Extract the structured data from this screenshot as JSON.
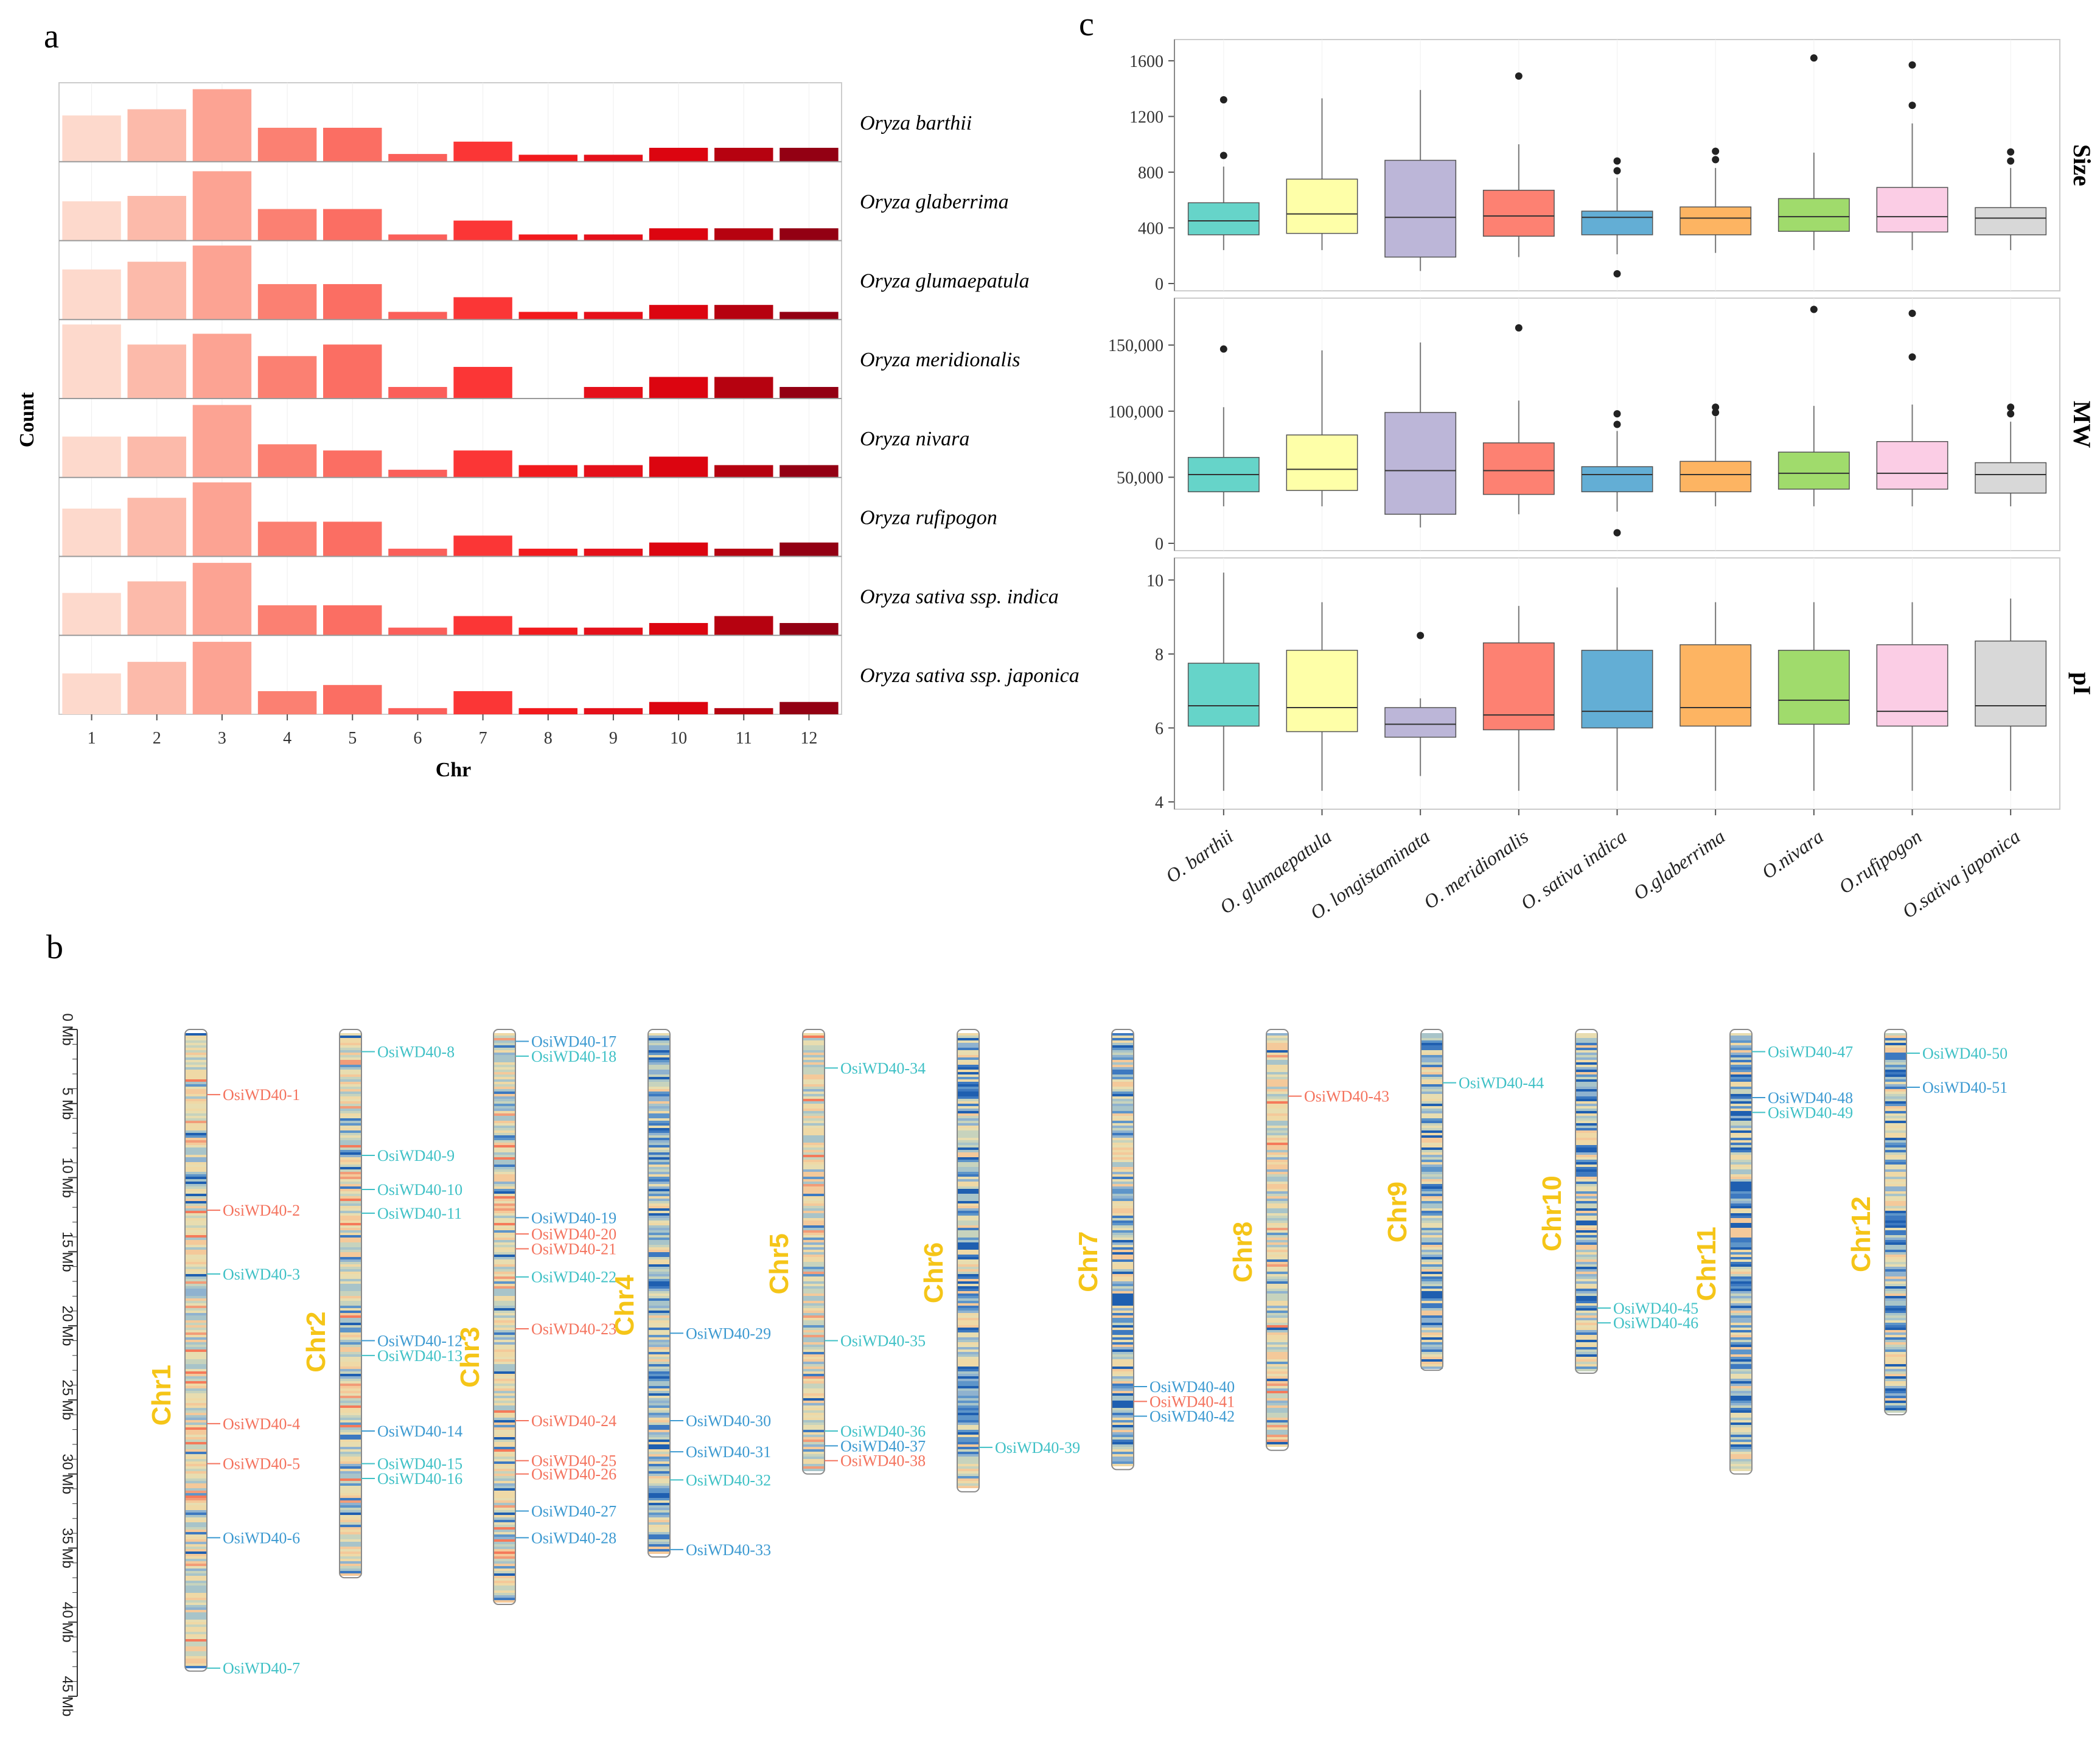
{
  "panels": {
    "a": "a",
    "b": "b",
    "c": "c"
  },
  "colors": {
    "chr": [
      "#fdd9cc",
      "#fcbaaa",
      "#fca393",
      "#fb8072",
      "#fb6e63",
      "#fb5f5a",
      "#fb3636",
      "#f21a1d",
      "#e5101a",
      "#dc0510",
      "#b60210",
      "#930013"
    ],
    "box": [
      "#66d4c9",
      "#feffa8",
      "#bcb6d8",
      "#fd8172",
      "#63aed5",
      "#fdb462",
      "#a0db6c",
      "#fbcde5",
      "#d8d8d8"
    ],
    "gene_red": "#f4735e",
    "gene_teal": "#40c1c6",
    "gene_blue": "#3d9ad1",
    "chr_label": "#f5c518"
  },
  "chart_data": [
    {
      "id": "a",
      "type": "bar",
      "facet": "rows",
      "xlabel": "Chr",
      "ylabel": "Count",
      "categories": [
        "1",
        "2",
        "3",
        "4",
        "5",
        "6",
        "7",
        "8",
        "9",
        "10",
        "11",
        "12"
      ],
      "ylim": [
        0,
        10
      ],
      "series": [
        {
          "name": "Oryza barthii",
          "values": [
            6.0,
            6.8,
            9.4,
            4.4,
            4.4,
            1.0,
            2.6,
            0.9,
            0.9,
            1.8,
            1.8,
            1.8
          ]
        },
        {
          "name": "Oryza glaberrima",
          "values": [
            5.1,
            5.8,
            9.0,
            4.1,
            4.1,
            0.8,
            2.6,
            0.8,
            0.8,
            1.6,
            1.6,
            1.6
          ]
        },
        {
          "name": "Oryza glumaepatula",
          "values": [
            6.5,
            7.5,
            9.6,
            4.6,
            4.6,
            1.0,
            2.9,
            1.0,
            1.0,
            1.9,
            1.9,
            1.0
          ]
        },
        {
          "name": "Oryza meridionalis",
          "values": [
            9.6,
            7.0,
            8.4,
            5.5,
            7.0,
            1.5,
            4.1,
            0.0,
            1.5,
            2.8,
            2.8,
            1.5
          ]
        },
        {
          "name": "Oryza nivara",
          "values": [
            5.3,
            5.3,
            9.4,
            4.3,
            3.5,
            1.0,
            3.5,
            1.6,
            1.6,
            2.7,
            1.6,
            1.6
          ]
        },
        {
          "name": "Oryza rufipogon",
          "values": [
            6.2,
            7.6,
            9.6,
            4.5,
            4.5,
            1.0,
            2.7,
            1.0,
            1.0,
            1.8,
            1.0,
            1.8
          ]
        },
        {
          "name": "Oryza sativa ssp. indica",
          "values": [
            5.5,
            7.0,
            9.4,
            3.9,
            3.9,
            1.0,
            2.5,
            1.0,
            1.0,
            1.6,
            2.5,
            1.6
          ]
        },
        {
          "name": "Oryza sativa ssp. japonica",
          "values": [
            5.3,
            6.8,
            9.4,
            3.0,
            3.8,
            0.8,
            3.0,
            0.8,
            0.8,
            1.6,
            0.8,
            1.6
          ]
        }
      ]
    },
    {
      "id": "c",
      "type": "boxplot",
      "facet": "rows",
      "categories": [
        "O. barthii",
        "O. glumaepatula",
        "O. longistaminata",
        "O. meridionalis",
        "O. sativa indica",
        "O.glaberrima",
        "O.nivara",
        "O.rufipogon",
        "O.sativa japonica"
      ],
      "facets": [
        {
          "name": "Size",
          "ylim": [
            0,
            1700
          ],
          "yticks": [
            0,
            400,
            800,
            1200,
            1600
          ],
          "tick_labels": [
            "0",
            "400",
            "800",
            "1200",
            "1600"
          ],
          "boxes": [
            {
              "wlo": 240,
              "q1": 350,
              "med": 450,
              "q3": 580,
              "whi": 840,
              "out": [
                920,
                1320
              ]
            },
            {
              "wlo": 240,
              "q1": 360,
              "med": 500,
              "q3": 750,
              "whi": 1330,
              "out": []
            },
            {
              "wlo": 90,
              "q1": 190,
              "med": 475,
              "q3": 885,
              "whi": 1390,
              "out": []
            },
            {
              "wlo": 190,
              "q1": 340,
              "med": 485,
              "q3": 670,
              "whi": 1000,
              "out": [
                1490
              ]
            },
            {
              "wlo": 210,
              "q1": 350,
              "med": 475,
              "q3": 520,
              "whi": 760,
              "out": [
                70,
                810,
                880
              ]
            },
            {
              "wlo": 220,
              "q1": 350,
              "med": 470,
              "q3": 550,
              "whi": 830,
              "out": [
                890,
                950
              ]
            },
            {
              "wlo": 240,
              "q1": 375,
              "med": 480,
              "q3": 610,
              "whi": 940,
              "out": [
                1620
              ]
            },
            {
              "wlo": 240,
              "q1": 370,
              "med": 480,
              "q3": 690,
              "whi": 1150,
              "out": [
                1280,
                1570
              ]
            },
            {
              "wlo": 240,
              "q1": 350,
              "med": 470,
              "q3": 545,
              "whi": 830,
              "out": [
                880,
                945
              ]
            }
          ]
        },
        {
          "name": "MW",
          "ylim": [
            0,
            180000
          ],
          "yticks": [
            0,
            50000,
            100000,
            150000
          ],
          "tick_labels": [
            "0",
            "50,000",
            "100,000",
            "150,000"
          ],
          "boxes": [
            {
              "wlo": 28000,
              "q1": 39000,
              "med": 52000,
              "q3": 65000,
              "whi": 103000,
              "out": [
                147000
              ]
            },
            {
              "wlo": 28000,
              "q1": 40000,
              "med": 56000,
              "q3": 82000,
              "whi": 146000,
              "out": []
            },
            {
              "wlo": 12000,
              "q1": 22000,
              "med": 55000,
              "q3": 99000,
              "whi": 152000,
              "out": []
            },
            {
              "wlo": 22000,
              "q1": 37000,
              "med": 55000,
              "q3": 76000,
              "whi": 108000,
              "out": [
                163000
              ]
            },
            {
              "wlo": 24000,
              "q1": 39000,
              "med": 52000,
              "q3": 58000,
              "whi": 85000,
              "out": [
                8000,
                90000,
                98000
              ]
            },
            {
              "wlo": 28000,
              "q1": 39000,
              "med": 52000,
              "q3": 62000,
              "whi": 96000,
              "out": [
                99000,
                103000
              ]
            },
            {
              "wlo": 28000,
              "q1": 41000,
              "med": 53000,
              "q3": 69000,
              "whi": 104000,
              "out": [
                177000
              ]
            },
            {
              "wlo": 28000,
              "q1": 41000,
              "med": 53000,
              "q3": 77000,
              "whi": 105000,
              "out": [
                141000,
                174000
              ]
            },
            {
              "wlo": 28000,
              "q1": 38000,
              "med": 52000,
              "q3": 61000,
              "whi": 92000,
              "out": [
                98000,
                103000
              ]
            }
          ]
        },
        {
          "name": "pI",
          "ylim": [
            4,
            10.4
          ],
          "yticks": [
            4,
            6,
            8,
            10
          ],
          "tick_labels": [
            "4",
            "6",
            "8",
            "10"
          ],
          "boxes": [
            {
              "wlo": 4.3,
              "q1": 6.05,
              "med": 6.6,
              "q3": 7.75,
              "whi": 10.2,
              "out": []
            },
            {
              "wlo": 4.3,
              "q1": 5.9,
              "med": 6.55,
              "q3": 8.1,
              "whi": 9.4,
              "out": []
            },
            {
              "wlo": 4.7,
              "q1": 5.75,
              "med": 6.1,
              "q3": 6.55,
              "whi": 6.8,
              "out": [
                8.5
              ]
            },
            {
              "wlo": 4.3,
              "q1": 5.95,
              "med": 6.35,
              "q3": 8.3,
              "whi": 9.3,
              "out": []
            },
            {
              "wlo": 4.3,
              "q1": 6.0,
              "med": 6.45,
              "q3": 8.1,
              "whi": 9.8,
              "out": []
            },
            {
              "wlo": 4.3,
              "q1": 6.05,
              "med": 6.55,
              "q3": 8.25,
              "whi": 9.4,
              "out": []
            },
            {
              "wlo": 4.3,
              "q1": 6.1,
              "med": 6.75,
              "q3": 8.1,
              "whi": 9.4,
              "out": []
            },
            {
              "wlo": 4.3,
              "q1": 6.05,
              "med": 6.45,
              "q3": 8.25,
              "whi": 9.4,
              "out": []
            },
            {
              "wlo": 4.3,
              "q1": 6.05,
              "med": 6.6,
              "q3": 8.35,
              "whi": 9.5,
              "out": []
            }
          ]
        }
      ]
    },
    {
      "id": "b",
      "type": "chromosome_map",
      "scale": {
        "max": 45,
        "ticks": [
          "0 Mb",
          "5 Mb",
          "10 Mb",
          "15 Mb",
          "20 Mb",
          "25 Mb",
          "30 Mb",
          "35 Mb",
          "40 Mb",
          "45 Mb"
        ]
      },
      "chromosomes": [
        {
          "name": "Chr1",
          "length": 43.3,
          "genes": [
            {
              "label": "OsiWD40-1",
              "pos": 4.4,
              "color": "red"
            },
            {
              "label": "OsiWD40-2",
              "pos": 12.2,
              "color": "red"
            },
            {
              "label": "OsiWD40-3",
              "pos": 16.5,
              "color": "teal"
            },
            {
              "label": "OsiWD40-4",
              "pos": 26.6,
              "color": "red"
            },
            {
              "label": "OsiWD40-5",
              "pos": 29.3,
              "color": "red"
            },
            {
              "label": "OsiWD40-6",
              "pos": 34.3,
              "color": "blue"
            },
            {
              "label": "OsiWD40-7",
              "pos": 43.1,
              "color": "teal"
            }
          ]
        },
        {
          "name": "Chr2",
          "length": 37.0,
          "genes": [
            {
              "label": "OsiWD40-8",
              "pos": 1.5,
              "color": "teal"
            },
            {
              "label": "OsiWD40-9",
              "pos": 8.5,
              "color": "teal"
            },
            {
              "label": "OsiWD40-10",
              "pos": 10.8,
              "color": "teal"
            },
            {
              "label": "OsiWD40-11",
              "pos": 12.4,
              "color": "teal"
            },
            {
              "label": "OsiWD40-12",
              "pos": 21.0,
              "color": "blue"
            },
            {
              "label": "OsiWD40-13",
              "pos": 22.0,
              "color": "teal"
            },
            {
              "label": "OsiWD40-14",
              "pos": 27.1,
              "color": "blue"
            },
            {
              "label": "OsiWD40-15",
              "pos": 29.3,
              "color": "teal"
            },
            {
              "label": "OsiWD40-16",
              "pos": 30.3,
              "color": "teal"
            }
          ]
        },
        {
          "name": "Chr3",
          "length": 38.8,
          "genes": [
            {
              "label": "OsiWD40-17",
              "pos": 0.8,
              "color": "blue"
            },
            {
              "label": "OsiWD40-18",
              "pos": 1.8,
              "color": "teal"
            },
            {
              "label": "OsiWD40-19",
              "pos": 12.7,
              "color": "blue"
            },
            {
              "label": "OsiWD40-20",
              "pos": 13.8,
              "color": "red"
            },
            {
              "label": "OsiWD40-21",
              "pos": 14.8,
              "color": "red"
            },
            {
              "label": "OsiWD40-22",
              "pos": 16.7,
              "color": "teal"
            },
            {
              "label": "OsiWD40-23",
              "pos": 20.2,
              "color": "red"
            },
            {
              "label": "OsiWD40-24",
              "pos": 26.4,
              "color": "red"
            },
            {
              "label": "OsiWD40-25",
              "pos": 29.1,
              "color": "red"
            },
            {
              "label": "OsiWD40-26",
              "pos": 30.0,
              "color": "red"
            },
            {
              "label": "OsiWD40-27",
              "pos": 32.5,
              "color": "blue"
            },
            {
              "label": "OsiWD40-28",
              "pos": 34.3,
              "color": "blue"
            }
          ]
        },
        {
          "name": "Chr4",
          "length": 35.6,
          "genes": [
            {
              "label": "OsiWD40-29",
              "pos": 20.5,
              "color": "blue"
            },
            {
              "label": "OsiWD40-30",
              "pos": 26.4,
              "color": "blue"
            },
            {
              "label": "OsiWD40-31",
              "pos": 28.5,
              "color": "blue"
            },
            {
              "label": "OsiWD40-32",
              "pos": 30.4,
              "color": "teal"
            },
            {
              "label": "OsiWD40-33",
              "pos": 35.1,
              "color": "blue"
            }
          ]
        },
        {
          "name": "Chr5",
          "length": 30.0,
          "genes": [
            {
              "label": "OsiWD40-34",
              "pos": 2.6,
              "color": "teal"
            },
            {
              "label": "OsiWD40-35",
              "pos": 21.0,
              "color": "teal"
            },
            {
              "label": "OsiWD40-36",
              "pos": 27.1,
              "color": "teal"
            },
            {
              "label": "OsiWD40-37",
              "pos": 28.1,
              "color": "blue"
            },
            {
              "label": "OsiWD40-38",
              "pos": 29.1,
              "color": "red"
            }
          ]
        },
        {
          "name": "Chr6",
          "length": 31.2,
          "genes": [
            {
              "label": "OsiWD40-39",
              "pos": 28.2,
              "color": "teal"
            }
          ]
        },
        {
          "name": "Chr7",
          "length": 29.7,
          "genes": [
            {
              "label": "OsiWD40-40",
              "pos": 24.1,
              "color": "blue"
            },
            {
              "label": "OsiWD40-41",
              "pos": 25.1,
              "color": "red"
            },
            {
              "label": "OsiWD40-42",
              "pos": 26.1,
              "color": "blue"
            }
          ]
        },
        {
          "name": "Chr8",
          "length": 28.4,
          "genes": [
            {
              "label": "OsiWD40-43",
              "pos": 4.5,
              "color": "red"
            }
          ]
        },
        {
          "name": "Chr9",
          "length": 23.0,
          "genes": [
            {
              "label": "OsiWD40-44",
              "pos": 3.6,
              "color": "teal"
            }
          ]
        },
        {
          "name": "Chr10",
          "length": 23.2,
          "genes": [
            {
              "label": "OsiWD40-45",
              "pos": 18.8,
              "color": "teal"
            },
            {
              "label": "OsiWD40-46",
              "pos": 19.8,
              "color": "teal"
            }
          ]
        },
        {
          "name": "Chr11",
          "length": 30.0,
          "genes": [
            {
              "label": "OsiWD40-47",
              "pos": 1.5,
              "color": "teal"
            },
            {
              "label": "OsiWD40-48",
              "pos": 4.6,
              "color": "blue"
            },
            {
              "label": "OsiWD40-49",
              "pos": 5.6,
              "color": "teal"
            }
          ]
        },
        {
          "name": "Chr12",
          "length": 26.0,
          "genes": [
            {
              "label": "OsiWD40-50",
              "pos": 1.6,
              "color": "teal"
            },
            {
              "label": "OsiWD40-51",
              "pos": 3.9,
              "color": "blue"
            }
          ]
        }
      ]
    }
  ]
}
